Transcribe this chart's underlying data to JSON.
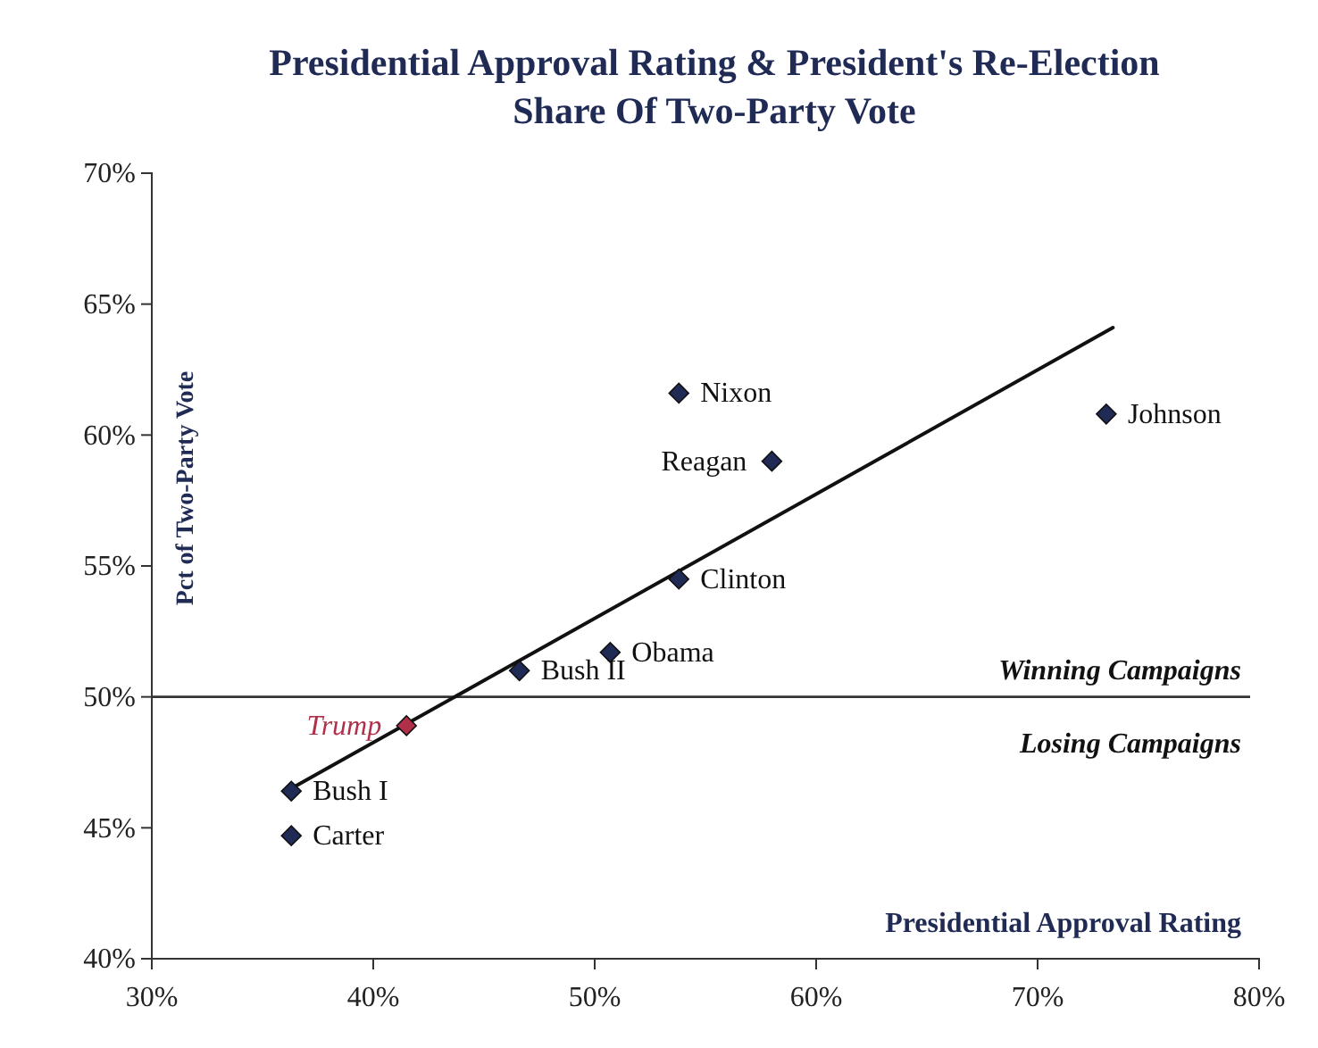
{
  "chart_data": {
    "type": "scatter",
    "title": "Presidential Approval Rating & President's Re-Election Share Of Two-Party Vote",
    "xlabel": "Presidential Approval Rating",
    "ylabel": "Pct of Two-Party Vote",
    "xlim": [
      30,
      80
    ],
    "xticks": [
      {
        "value": 30,
        "label": "30%"
      },
      {
        "value": 40,
        "label": "40%"
      },
      {
        "value": 50,
        "label": "50%"
      },
      {
        "value": 60,
        "label": "60%"
      },
      {
        "value": 70,
        "label": "70%"
      },
      {
        "value": 80,
        "label": "80%"
      }
    ],
    "ylim": [
      40,
      70
    ],
    "yticks": [
      {
        "value": 40,
        "label": "40%"
      },
      {
        "value": 45,
        "label": "45%"
      },
      {
        "value": 50,
        "label": "50%"
      },
      {
        "value": 55,
        "label": "55%"
      },
      {
        "value": 60,
        "label": "60%"
      },
      {
        "value": 65,
        "label": "65%"
      },
      {
        "value": 70,
        "label": "70%"
      }
    ],
    "marker": "diamond",
    "grid": false,
    "series": [
      {
        "name": "Nixon",
        "color": "#1f2a55",
        "x": [
          53.8
        ],
        "values": [
          61.6
        ]
      },
      {
        "name": "Reagan",
        "color": "#1f2a55",
        "x": [
          58.0
        ],
        "values": [
          59.0
        ]
      },
      {
        "name": "Johnson",
        "color": "#1f2a55",
        "x": [
          73.1
        ],
        "values": [
          60.8
        ]
      },
      {
        "name": "Clinton",
        "color": "#1f2a55",
        "x": [
          53.8
        ],
        "values": [
          54.5
        ]
      },
      {
        "name": "Obama",
        "color": "#1f2a55",
        "x": [
          50.7
        ],
        "values": [
          51.7
        ]
      },
      {
        "name": "Bush II",
        "color": "#1f2a55",
        "x": [
          46.6
        ],
        "values": [
          51.0
        ]
      },
      {
        "name": "Trump",
        "color": "#b0304a",
        "x": [
          41.5
        ],
        "values": [
          48.9
        ]
      },
      {
        "name": "Bush I",
        "color": "#1f2a55",
        "x": [
          36.3
        ],
        "values": [
          46.4
        ]
      },
      {
        "name": "Carter",
        "color": "#1f2a55",
        "x": [
          36.3
        ],
        "values": [
          44.7
        ]
      },
      {
        "type": "line",
        "marker": "none",
        "color": "#111111",
        "x": [
          36.3,
          73.4
        ],
        "values": [
          46.5,
          64.1
        ]
      }
    ],
    "ref_lines": [
      {
        "axis": "y",
        "value": 50,
        "color": "#333333"
      }
    ],
    "annotations": [
      "Winning Campaigns",
      "Losing Campaigns"
    ]
  }
}
